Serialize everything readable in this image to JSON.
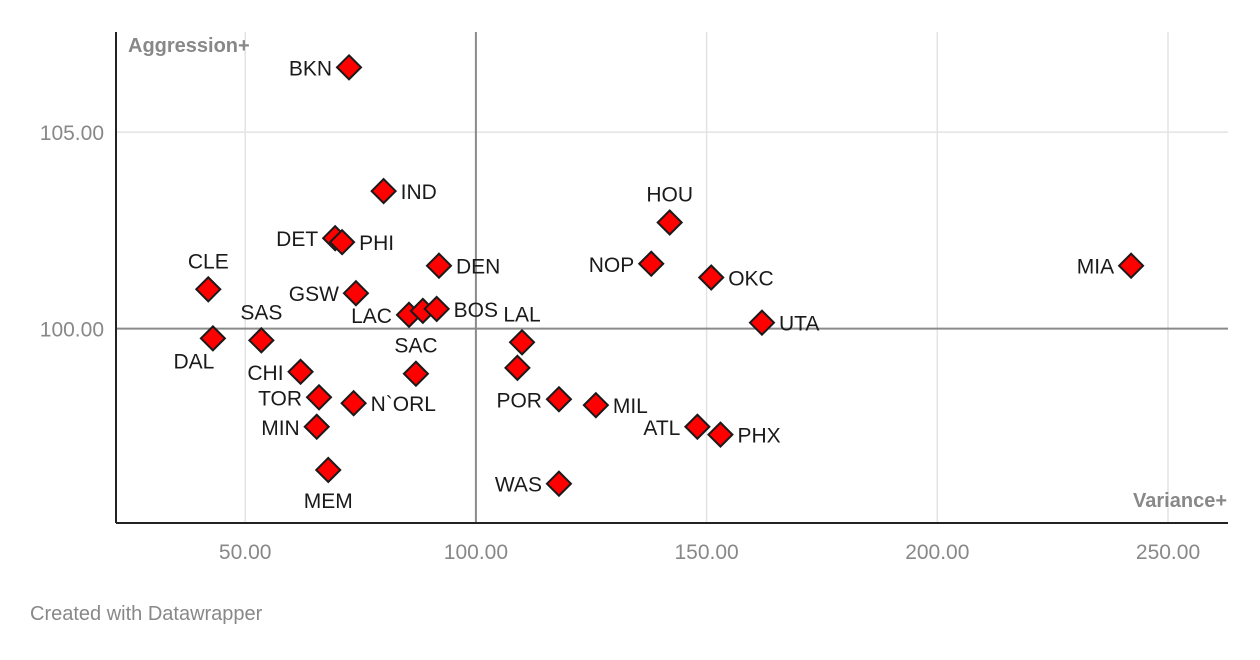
{
  "chart_data": {
    "type": "scatter",
    "title": "",
    "xlabel": "Variance+",
    "ylabel": "Aggression+",
    "xlim": [
      22,
      263
    ],
    "ylim": [
      95.05,
      107.55
    ],
    "x_ticks": [
      {
        "value": 50,
        "label": "50.00"
      },
      {
        "value": 100,
        "label": "100.00"
      },
      {
        "value": 150,
        "label": "150.00"
      },
      {
        "value": 200,
        "label": "200.00"
      },
      {
        "value": 250,
        "label": "250.00"
      }
    ],
    "y_ticks": [
      {
        "value": 100,
        "label": "100.00"
      },
      {
        "value": 105,
        "label": "105.00"
      }
    ],
    "reference_lines": {
      "x": 100,
      "y": 100
    },
    "grid": true,
    "marker": {
      "shape": "diamond",
      "fill": "#ff0000",
      "stroke": "#1a1a1a"
    },
    "points": [
      {
        "label": "BKN",
        "x": 72.5,
        "y": 106.65,
        "label_pos": "left"
      },
      {
        "label": "IND",
        "x": 80.0,
        "y": 103.5,
        "label_pos": "right"
      },
      {
        "label": "DET",
        "x": 69.5,
        "y": 102.3,
        "label_pos": "left"
      },
      {
        "label": "PHI",
        "x": 71.0,
        "y": 102.2,
        "label_pos": "right"
      },
      {
        "label": "CLE",
        "x": 42.0,
        "y": 101.0,
        "label_pos": "above"
      },
      {
        "label": "GSW",
        "x": 74.0,
        "y": 100.9,
        "label_pos": "left"
      },
      {
        "label": "DEN",
        "x": 92.0,
        "y": 101.6,
        "label_pos": "right"
      },
      {
        "label": "LAC",
        "x": 85.5,
        "y": 100.35,
        "label_pos": "left"
      },
      {
        "label": "",
        "x": 88.5,
        "y": 100.45,
        "label_pos": "none"
      },
      {
        "label": "BOS",
        "x": 91.5,
        "y": 100.5,
        "label_pos": "right"
      },
      {
        "label": "SAC",
        "x": 87.0,
        "y": 98.85,
        "label_pos": "above"
      },
      {
        "label": "SAS",
        "x": 53.5,
        "y": 99.7,
        "label_pos": "above"
      },
      {
        "label": "DAL",
        "x": 43.0,
        "y": 99.75,
        "label_pos": "below-left"
      },
      {
        "label": "CHI",
        "x": 62.0,
        "y": 98.9,
        "label_pos": "left"
      },
      {
        "label": "TOR",
        "x": 66.0,
        "y": 98.25,
        "label_pos": "left"
      },
      {
        "label": "N`ORL",
        "x": 73.5,
        "y": 98.1,
        "label_pos": "right"
      },
      {
        "label": "MIN",
        "x": 65.5,
        "y": 97.5,
        "label_pos": "left"
      },
      {
        "label": "MEM",
        "x": 68.0,
        "y": 96.4,
        "label_pos": "below"
      },
      {
        "label": "LAL",
        "x": 110.0,
        "y": 99.65,
        "label_pos": "above"
      },
      {
        "label": "",
        "x": 109.0,
        "y": 99.0,
        "label_pos": "none"
      },
      {
        "label": "POR",
        "x": 118.0,
        "y": 98.2,
        "label_pos": "left"
      },
      {
        "label": "MIL",
        "x": 126.0,
        "y": 98.05,
        "label_pos": "right"
      },
      {
        "label": "WAS",
        "x": 118.0,
        "y": 96.05,
        "label_pos": "left"
      },
      {
        "label": "HOU",
        "x": 142.0,
        "y": 102.7,
        "label_pos": "above"
      },
      {
        "label": "NOP",
        "x": 138.0,
        "y": 101.65,
        "label_pos": "left"
      },
      {
        "label": "OKC",
        "x": 151.0,
        "y": 101.3,
        "label_pos": "right"
      },
      {
        "label": "UTA",
        "x": 162.0,
        "y": 100.15,
        "label_pos": "right"
      },
      {
        "label": "ATL",
        "x": 148.0,
        "y": 97.5,
        "label_pos": "left"
      },
      {
        "label": "PHX",
        "x": 153.0,
        "y": 97.3,
        "label_pos": "right"
      },
      {
        "label": "MIA",
        "x": 242.0,
        "y": 101.6,
        "label_pos": "left"
      }
    ]
  },
  "footer": {
    "credit": "Created with Datawrapper"
  }
}
